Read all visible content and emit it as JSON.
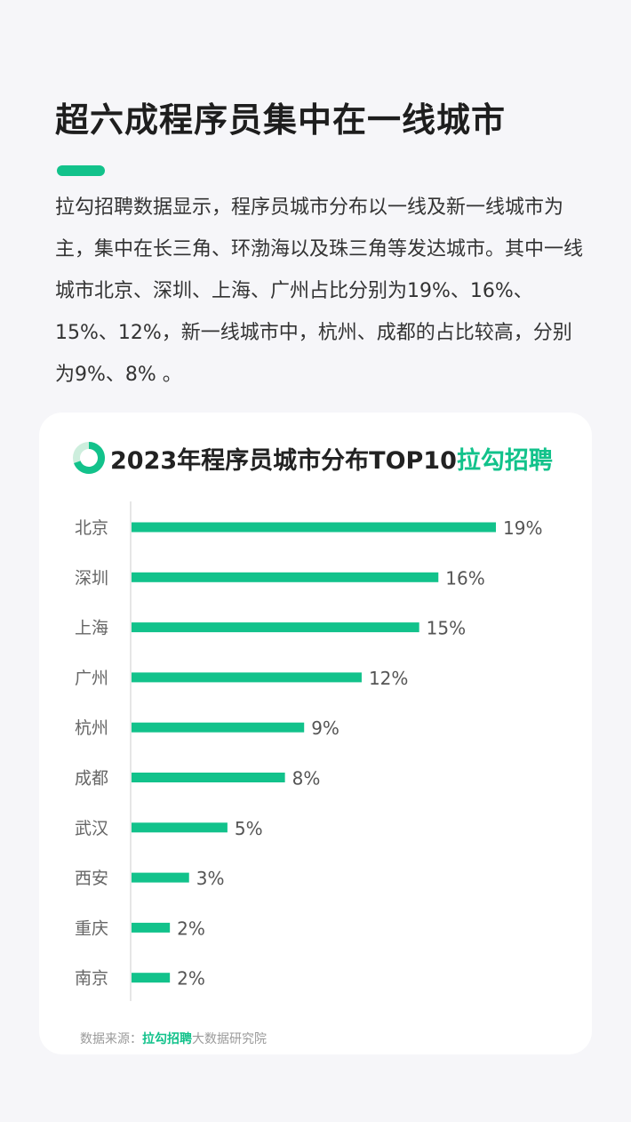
{
  "headline": "超六成程序员集中在一线城市",
  "intro": "拉勾招聘数据显示，程序员城市分布以一线及新一线城市为主，集中在长三角、环渤海以及珠三角等发达城市。其中一线城市北京、深圳、上海、广州占比分别为19%、16%、15%、12%，新一线城市中，杭州、成都的占比较高，分别为9%、8% 。",
  "colors": {
    "accent": "#12c28b",
    "bar": "#12c28b",
    "axis": "#dddddd"
  },
  "card": {
    "title": "2023年程序员城市分布TOP10",
    "brand": "拉勾招聘",
    "source_prefix": "数据来源：",
    "source_brand": "拉勾招聘",
    "source_suffix": "大数据研究院"
  },
  "chart_data": {
    "type": "bar",
    "orientation": "horizontal",
    "title": "2023年程序员城市分布TOP10",
    "categories": [
      "北京",
      "深圳",
      "上海",
      "广州",
      "杭州",
      "成都",
      "武汉",
      "西安",
      "重庆",
      "南京"
    ],
    "values": [
      19,
      16,
      15,
      12,
      9,
      8,
      5,
      3,
      2,
      2
    ],
    "value_labels": [
      "19%",
      "16%",
      "15%",
      "12%",
      "9%",
      "8%",
      "5%",
      "3%",
      "2%",
      "2%"
    ],
    "unit": "%",
    "grid": false,
    "legend": "none"
  }
}
